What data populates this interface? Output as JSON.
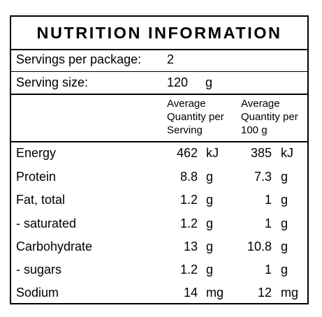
{
  "panel": {
    "title": "NUTRITION INFORMATION",
    "servings_per_package": {
      "label": "Servings per package:",
      "value": "2"
    },
    "serving_size": {
      "label": "Serving size:",
      "value": "120",
      "unit": "g"
    },
    "columns": {
      "per_serving": "Average\nQuantity per\nServing",
      "per_100g": "Average\nQuantity per\n100 g"
    },
    "rows": [
      {
        "name": "Energy",
        "serving": "462",
        "serving_unit": "kJ",
        "per100": "385",
        "per100_unit": "kJ"
      },
      {
        "name": "Protein",
        "serving": "8.8",
        "serving_unit": "g",
        "per100": "7.3",
        "per100_unit": "g"
      },
      {
        "name": "Fat, total",
        "serving": "1.2",
        "serving_unit": "g",
        "per100": "1",
        "per100_unit": "g"
      },
      {
        "name": "- saturated",
        "serving": "1.2",
        "serving_unit": "g",
        "per100": "1",
        "per100_unit": "g"
      },
      {
        "name": "Carbohydrate",
        "serving": "13",
        "serving_unit": "g",
        "per100": "10.8",
        "per100_unit": "g"
      },
      {
        "name": "- sugars",
        "serving": "1.2",
        "serving_unit": "g",
        "per100": "1",
        "per100_unit": "g"
      },
      {
        "name": "Sodium",
        "serving": "14",
        "serving_unit": "mg",
        "per100": "12",
        "per100_unit": "mg"
      }
    ]
  }
}
